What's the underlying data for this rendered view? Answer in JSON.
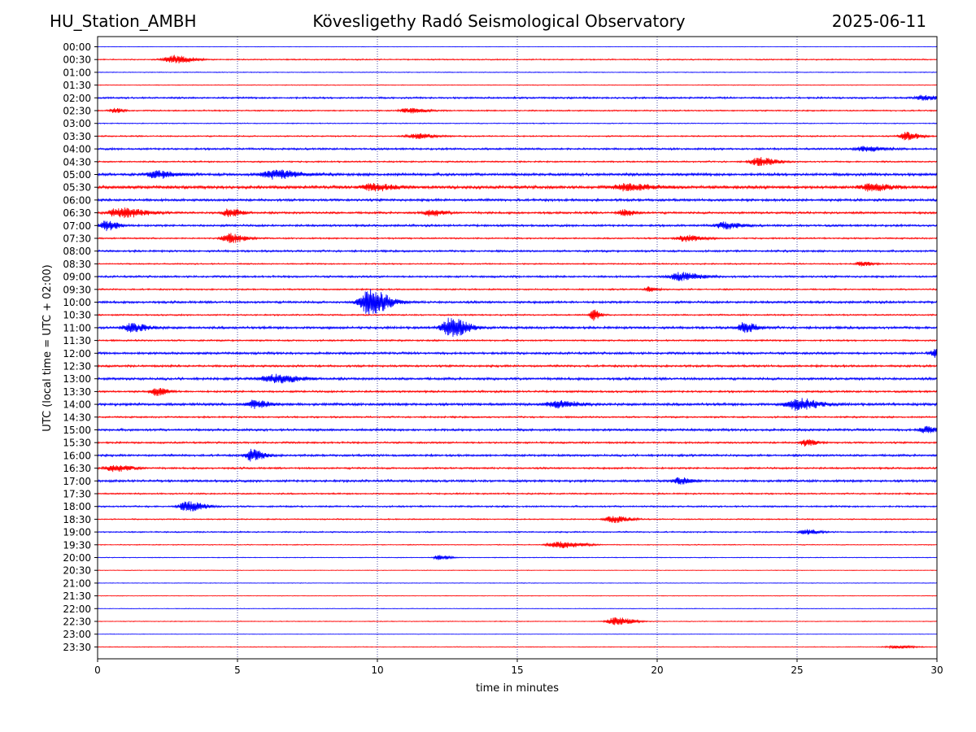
{
  "header": {
    "station": "HU_Station_AMBH",
    "observatory": "Kövesligethy Radó Seismological Observatory",
    "date": "2025-06-11"
  },
  "colors": {
    "trace_a": "#0000ff",
    "trace_b": "#ff0000",
    "axes": "#000000",
    "grid": "#00007f"
  },
  "chart_data": {
    "type": "line",
    "title": "",
    "xlabel": "time in minutes",
    "ylabel": "UTC (local time = UTC + 02:00)",
    "xlim": [
      0,
      30
    ],
    "x_ticks": [
      0,
      5,
      10,
      15,
      20,
      25,
      30
    ],
    "grid": "vertical dotted lines at x = 5, 10, 15, 20, 25",
    "legend": "none",
    "row_colors_alternate": [
      "trace_a",
      "trace_b"
    ],
    "rows": [
      "00:00",
      "00:30",
      "01:00",
      "01:30",
      "02:00",
      "02:30",
      "03:00",
      "03:30",
      "04:00",
      "04:30",
      "05:00",
      "05:30",
      "06:00",
      "06:30",
      "07:00",
      "07:30",
      "08:00",
      "08:30",
      "09:00",
      "09:30",
      "10:00",
      "10:30",
      "11:00",
      "11:30",
      "12:00",
      "12:30",
      "13:00",
      "13:30",
      "14:00",
      "14:30",
      "15:00",
      "15:30",
      "16:00",
      "16:30",
      "17:00",
      "17:30",
      "18:00",
      "18:30",
      "19:00",
      "19:30",
      "20:00",
      "20:30",
      "21:00",
      "21:30",
      "22:00",
      "22:30",
      "23:00",
      "23:30"
    ],
    "row_noise_level": [
      0.3,
      0.8,
      0.5,
      0.5,
      1.2,
      0.9,
      0.6,
      0.9,
      1.3,
      1.0,
      1.8,
      2.0,
      1.6,
      1.4,
      1.4,
      1.0,
      1.3,
      0.9,
      1.3,
      1.0,
      1.5,
      1.0,
      1.6,
      1.1,
      1.5,
      1.4,
      1.6,
      1.3,
      1.7,
      1.1,
      1.5,
      1.2,
      1.4,
      1.2,
      1.5,
      1.0,
      1.1,
      0.8,
      0.9,
      0.6,
      0.5,
      0.4,
      0.4,
      0.4,
      0.4,
      0.5,
      0.3,
      0.5
    ],
    "events": [
      {
        "row": "00:30",
        "t": 2.7,
        "amp": 5,
        "dur": 0.9
      },
      {
        "row": "02:00",
        "t": 29.5,
        "amp": 3,
        "dur": 0.7
      },
      {
        "row": "02:30",
        "t": 0.6,
        "amp": 3,
        "dur": 0.4
      },
      {
        "row": "02:30",
        "t": 11.1,
        "amp": 3,
        "dur": 0.8
      },
      {
        "row": "03:30",
        "t": 11.4,
        "amp": 3,
        "dur": 0.9
      },
      {
        "row": "03:30",
        "t": 28.9,
        "amp": 5,
        "dur": 0.6
      },
      {
        "row": "04:00",
        "t": 27.4,
        "amp": 3,
        "dur": 0.9
      },
      {
        "row": "04:30",
        "t": 23.6,
        "amp": 5,
        "dur": 0.8
      },
      {
        "row": "05:00",
        "t": 2.1,
        "amp": 4,
        "dur": 0.9
      },
      {
        "row": "05:00",
        "t": 6.3,
        "amp": 5,
        "dur": 1.2
      },
      {
        "row": "05:30",
        "t": 9.8,
        "amp": 4,
        "dur": 1.1
      },
      {
        "row": "05:30",
        "t": 18.9,
        "amp": 4,
        "dur": 1.2
      },
      {
        "row": "05:30",
        "t": 27.6,
        "amp": 4,
        "dur": 1.0
      },
      {
        "row": "06:30",
        "t": 0.8,
        "amp": 6,
        "dur": 1.1
      },
      {
        "row": "06:30",
        "t": 4.7,
        "amp": 5,
        "dur": 0.6
      },
      {
        "row": "06:30",
        "t": 11.9,
        "amp": 4,
        "dur": 0.6
      },
      {
        "row": "06:30",
        "t": 18.8,
        "amp": 4,
        "dur": 0.5
      },
      {
        "row": "07:00",
        "t": 0.3,
        "amp": 6,
        "dur": 0.6
      },
      {
        "row": "07:00",
        "t": 22.4,
        "amp": 4,
        "dur": 0.8
      },
      {
        "row": "07:30",
        "t": 4.7,
        "amp": 6,
        "dur": 0.7
      },
      {
        "row": "07:30",
        "t": 21.0,
        "amp": 4,
        "dur": 0.8
      },
      {
        "row": "08:30",
        "t": 27.3,
        "amp": 3,
        "dur": 0.5
      },
      {
        "row": "09:00",
        "t": 20.8,
        "amp": 5,
        "dur": 1.0
      },
      {
        "row": "09:30",
        "t": 19.7,
        "amp": 3,
        "dur": 0.4
      },
      {
        "row": "10:00",
        "t": 9.7,
        "amp": 17,
        "dur": 0.9
      },
      {
        "row": "10:30",
        "t": 17.7,
        "amp": 7,
        "dur": 0.3
      },
      {
        "row": "11:00",
        "t": 12.6,
        "amp": 12,
        "dur": 0.8
      },
      {
        "row": "11:00",
        "t": 1.2,
        "amp": 5,
        "dur": 0.8
      },
      {
        "row": "11:00",
        "t": 23.1,
        "amp": 6,
        "dur": 0.6
      },
      {
        "row": "12:00",
        "t": 29.9,
        "amp": 5,
        "dur": 0.4
      },
      {
        "row": "13:00",
        "t": 6.3,
        "amp": 5,
        "dur": 1.2
      },
      {
        "row": "13:30",
        "t": 2.1,
        "amp": 5,
        "dur": 0.5
      },
      {
        "row": "14:00",
        "t": 5.6,
        "amp": 5,
        "dur": 0.7
      },
      {
        "row": "14:00",
        "t": 16.4,
        "amp": 4,
        "dur": 1.0
      },
      {
        "row": "14:00",
        "t": 25.0,
        "amp": 7,
        "dur": 1.0
      },
      {
        "row": "15:00",
        "t": 29.6,
        "amp": 4,
        "dur": 0.6
      },
      {
        "row": "15:30",
        "t": 25.3,
        "amp": 4,
        "dur": 0.5
      },
      {
        "row": "16:00",
        "t": 5.5,
        "amp": 7,
        "dur": 0.6
      },
      {
        "row": "16:30",
        "t": 0.6,
        "amp": 4,
        "dur": 0.8
      },
      {
        "row": "17:00",
        "t": 20.8,
        "amp": 4,
        "dur": 0.6
      },
      {
        "row": "18:00",
        "t": 3.2,
        "amp": 6,
        "dur": 0.8
      },
      {
        "row": "18:30",
        "t": 18.4,
        "amp": 4,
        "dur": 0.8
      },
      {
        "row": "19:00",
        "t": 25.3,
        "amp": 3,
        "dur": 0.6
      },
      {
        "row": "19:30",
        "t": 16.5,
        "amp": 4,
        "dur": 1.1
      },
      {
        "row": "20:00",
        "t": 12.2,
        "amp": 3,
        "dur": 0.5
      },
      {
        "row": "22:30",
        "t": 18.5,
        "amp": 5,
        "dur": 0.8
      },
      {
        "row": "23:30",
        "t": 28.5,
        "amp": 2,
        "dur": 0.8
      }
    ]
  }
}
